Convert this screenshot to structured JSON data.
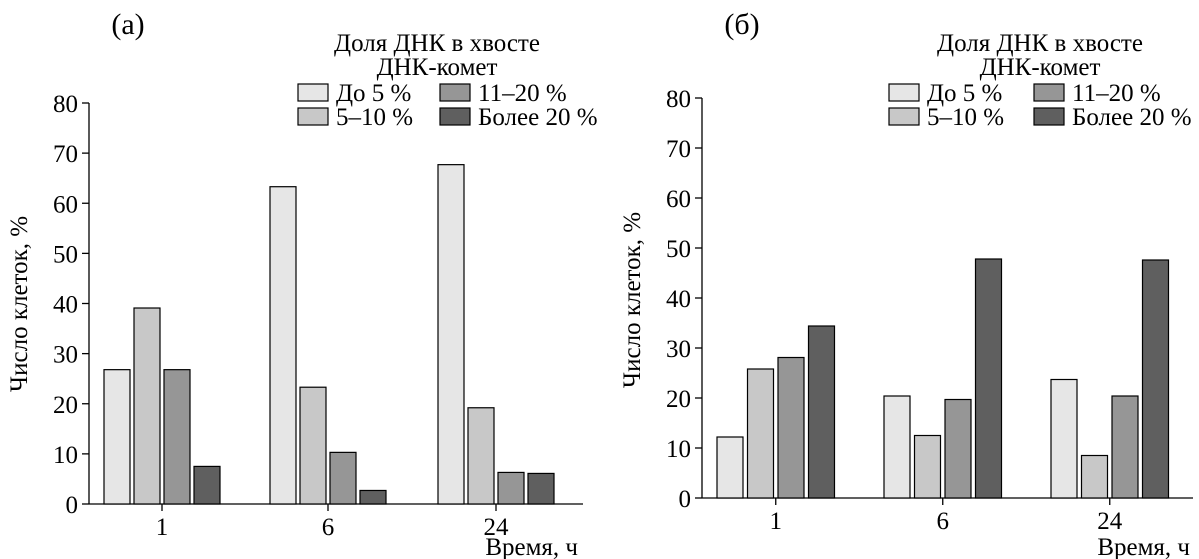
{
  "legend": {
    "title_line1": "Доля ДНК в хвосте",
    "title_line2": "ДНК-комет"
  },
  "colors": [
    "#e6e6e6",
    "#c8c8c8",
    "#969696",
    "#5f5f5f"
  ],
  "chart_data": [
    {
      "type": "bar",
      "panel_label": "(а)",
      "title": "",
      "categories": [
        "1",
        "6",
        "24"
      ],
      "series": [
        {
          "name": "До 5 %",
          "values": [
            26.8,
            63.3,
            67.7
          ]
        },
        {
          "name": "5–10 %",
          "values": [
            39.1,
            23.3,
            19.2
          ]
        },
        {
          "name": "11–20 %",
          "values": [
            26.8,
            10.3,
            6.3
          ]
        },
        {
          "name": "Более 20 %",
          "values": [
            7.5,
            2.7,
            6.1
          ]
        }
      ],
      "xlabel": "Время, ч",
      "ylabel": "Число клеток, %",
      "ylim": [
        0,
        80
      ],
      "yticks": [
        0,
        10,
        20,
        30,
        40,
        50,
        60,
        70,
        80
      ],
      "grid": false,
      "legend_position": "top-right"
    },
    {
      "type": "bar",
      "panel_label": "(б)",
      "title": "",
      "categories": [
        "1",
        "6",
        "24"
      ],
      "series": [
        {
          "name": "До 5 %",
          "values": [
            12.2,
            20.4,
            23.7
          ]
        },
        {
          "name": "5–10 %",
          "values": [
            25.8,
            12.5,
            8.5
          ]
        },
        {
          "name": "11–20 %",
          "values": [
            28.1,
            19.7,
            20.4
          ]
        },
        {
          "name": "Более 20 %",
          "values": [
            34.4,
            47.8,
            47.6
          ]
        }
      ],
      "xlabel": "Время, ч",
      "ylabel": "Число клеток, %",
      "ylim": [
        0,
        80
      ],
      "yticks": [
        0,
        10,
        20,
        30,
        40,
        50,
        60,
        70,
        80
      ],
      "grid": false,
      "legend_position": "top-right"
    }
  ]
}
